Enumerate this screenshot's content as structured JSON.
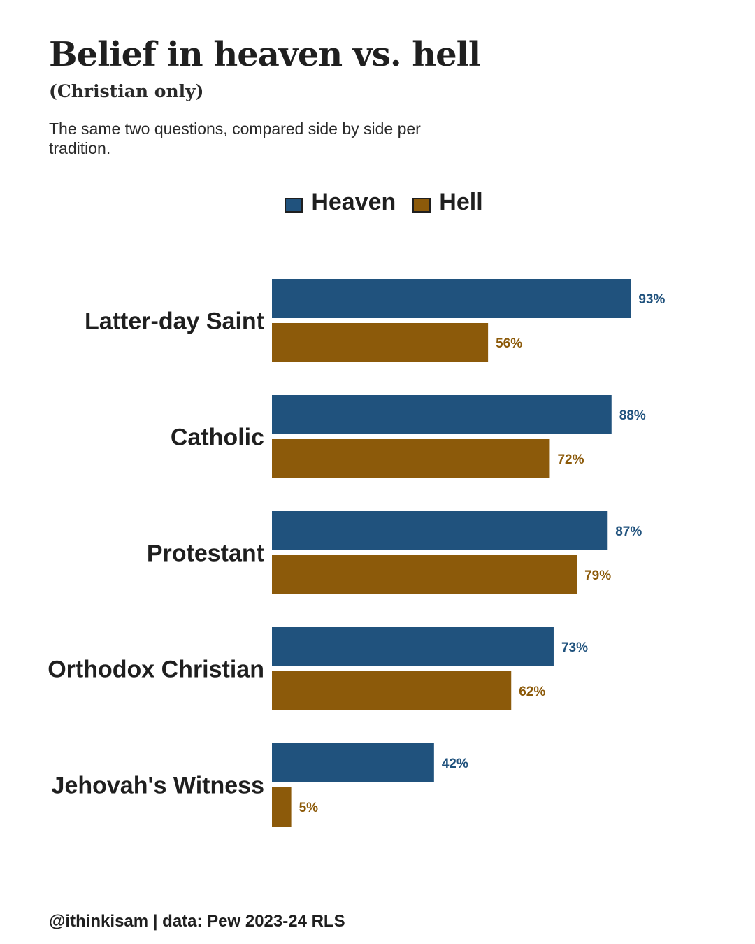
{
  "title": "Belief in heaven vs. hell",
  "subtitle": "(Christian only)",
  "description": "The same two questions, compared side by side per tradition.",
  "caption": "@ithinkisam | data: Pew 2023-24 RLS",
  "colors": {
    "heaven": "#20527d",
    "hell": "#8c5a0a",
    "text": "#1f1f1f"
  },
  "legend": [
    {
      "label": "Heaven",
      "color": "#20527d"
    },
    {
      "label": "Hell",
      "color": "#8c5a0a"
    }
  ],
  "chart_data": {
    "type": "bar",
    "orientation": "horizontal",
    "grouped": true,
    "categories": [
      "Latter-day Saint",
      "Catholic",
      "Protestant",
      "Orthodox Christian",
      "Jehovah's Witness"
    ],
    "series": [
      {
        "name": "Heaven",
        "values": [
          93,
          88,
          87,
          73,
          42
        ],
        "labels": [
          "93%",
          "88%",
          "87%",
          "73%",
          "42%"
        ],
        "color": "#20527d"
      },
      {
        "name": "Hell",
        "values": [
          56,
          72,
          79,
          62,
          5
        ],
        "labels": [
          "56%",
          "72%",
          "79%",
          "62%",
          "5%"
        ],
        "color": "#8c5a0a"
      }
    ],
    "xlim": [
      0,
      100
    ],
    "unit": "%",
    "grid": false,
    "legend_position": "top-center",
    "title": "Belief in heaven vs. hell",
    "subtitle": "(Christian only)"
  }
}
